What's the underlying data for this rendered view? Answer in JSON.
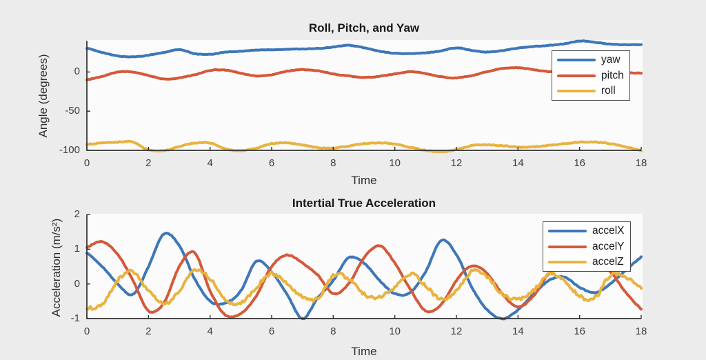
{
  "figure": {
    "background": "#ececed",
    "plot_background": "#fbfbfb",
    "axis_color": "#2e2e2e",
    "tick_label_color": "#3d3d3d",
    "title_color": "#171717",
    "label_color": "#2e2e2e",
    "legend_border_color": "#4b4b4b",
    "legend_background": "#fefefe"
  },
  "chart_data": [
    {
      "type": "line",
      "title": "Roll, Pitch, and Yaw",
      "xlabel": "Time",
      "ylabel": "Angle (degrees)",
      "xlim": [
        0,
        18
      ],
      "ylim": [
        -100,
        40
      ],
      "xticks": [
        0,
        2,
        4,
        6,
        8,
        10,
        12,
        14,
        16,
        18
      ],
      "yticks": [
        0,
        -50,
        -100
      ],
      "grid": false,
      "legend": [
        "yaw",
        "pitch",
        "roll"
      ],
      "legend_position": "upper right",
      "x_start": 0,
      "x_step": 0.5,
      "series": [
        {
          "name": "yaw",
          "color": "#3d77b8",
          "noise": 0.35,
          "values": [
            30.5,
            25,
            20.5,
            19.5,
            21.5,
            25,
            28.5,
            23.5,
            22.5,
            25.5,
            26.5,
            28,
            28.5,
            29,
            29.5,
            30,
            32,
            34,
            31,
            26.5,
            24,
            23.5,
            24.5,
            27,
            31,
            27.5,
            25.5,
            27.5,
            30.5,
            32.5,
            34,
            36,
            39.5,
            38,
            35.5,
            35,
            35
          ]
        },
        {
          "name": "pitch",
          "color": "#d4593a",
          "noise": 0.35,
          "values": [
            -10,
            -5.5,
            0,
            0,
            -4.5,
            -9,
            -7.5,
            -3.5,
            2,
            2.5,
            -1.5,
            -5,
            -3.5,
            1,
            3,
            1.5,
            -2.5,
            -5,
            -7,
            -5.5,
            -2.5,
            0.5,
            -2,
            -6,
            -7.5,
            -4.5,
            0.5,
            4.5,
            5.5,
            3,
            0.5,
            -1,
            -2,
            -2.5,
            -2,
            -1,
            -1.5
          ]
        },
        {
          "name": "roll",
          "color": "#e9b340",
          "noise": 0.5,
          "values": [
            -92.5,
            -90.5,
            -89.5,
            -89.5,
            -99.5,
            -100.5,
            -95,
            -91,
            -90.5,
            -98,
            -100.5,
            -97,
            -91.5,
            -90.5,
            -93,
            -96.5,
            -97,
            -94.5,
            -91.5,
            -90.5,
            -92,
            -96,
            -100,
            -102,
            -99,
            -94,
            -93,
            -94,
            -96,
            -95.5,
            -93.5,
            -91.5,
            -89.5,
            -89.5,
            -91.5,
            -95.5,
            -100.5
          ]
        }
      ]
    },
    {
      "type": "line",
      "title": "Intertial True Acceleration",
      "xlabel": "Time",
      "ylabel": "Acceleration (m/s²)",
      "xlim": [
        0,
        18
      ],
      "ylim": [
        -1,
        2
      ],
      "xticks": [
        0,
        2,
        4,
        6,
        8,
        10,
        12,
        14,
        16,
        18
      ],
      "yticks": [
        2,
        1,
        0,
        -1
      ],
      "grid": false,
      "legend": [
        "accelX",
        "accelY",
        "accelZ"
      ],
      "legend_position": "upper right",
      "x_start": 0,
      "x_step": 0.5,
      "series": [
        {
          "name": "accelX",
          "color": "#3d77b8",
          "noise": 0.012,
          "values": [
            0.9,
            0.5,
            0.0,
            -0.3,
            0.5,
            1.44,
            1.1,
            0.15,
            -0.5,
            -0.55,
            -0.2,
            0.65,
            0.35,
            -0.3,
            -1.0,
            -0.4,
            0.1,
            0.75,
            0.6,
            0.1,
            -0.28,
            -0.25,
            0.35,
            1.25,
            0.85,
            -0.1,
            -0.75,
            -1.0,
            -0.75,
            -0.3,
            0.1,
            0.2,
            -0.1,
            -0.25,
            0.0,
            0.4,
            0.78
          ]
        },
        {
          "name": "accelY",
          "color": "#d4593a",
          "noise": 0.012,
          "values": [
            1.05,
            1.22,
            0.85,
            0.1,
            -0.78,
            -0.55,
            0.5,
            0.9,
            -0.2,
            -0.9,
            -0.85,
            -0.35,
            0.5,
            0.83,
            0.6,
            0.25,
            -0.28,
            0.0,
            0.75,
            1.1,
            0.6,
            -0.15,
            -0.78,
            -0.6,
            0.1,
            0.52,
            0.3,
            -0.3,
            -0.66,
            -0.35,
            0.3,
            0.55,
            0.65,
            0.6,
            0.35,
            -0.25,
            -0.73
          ]
        },
        {
          "name": "accelZ",
          "color": "#e9b340",
          "noise": 0.05,
          "values": [
            -0.7,
            -0.6,
            0.1,
            0.35,
            -0.2,
            -0.58,
            -0.2,
            0.38,
            0.15,
            -0.45,
            -0.55,
            -0.1,
            0.3,
            0.0,
            -0.36,
            -0.42,
            0.25,
            0.15,
            -0.3,
            -0.38,
            -0.1,
            0.3,
            -0.05,
            -0.45,
            -0.2,
            0.35,
            0.2,
            -0.3,
            -0.45,
            -0.2,
            0.3,
            0.1,
            -0.35,
            -0.4,
            0.25,
            0.2,
            -0.13
          ]
        }
      ]
    }
  ]
}
